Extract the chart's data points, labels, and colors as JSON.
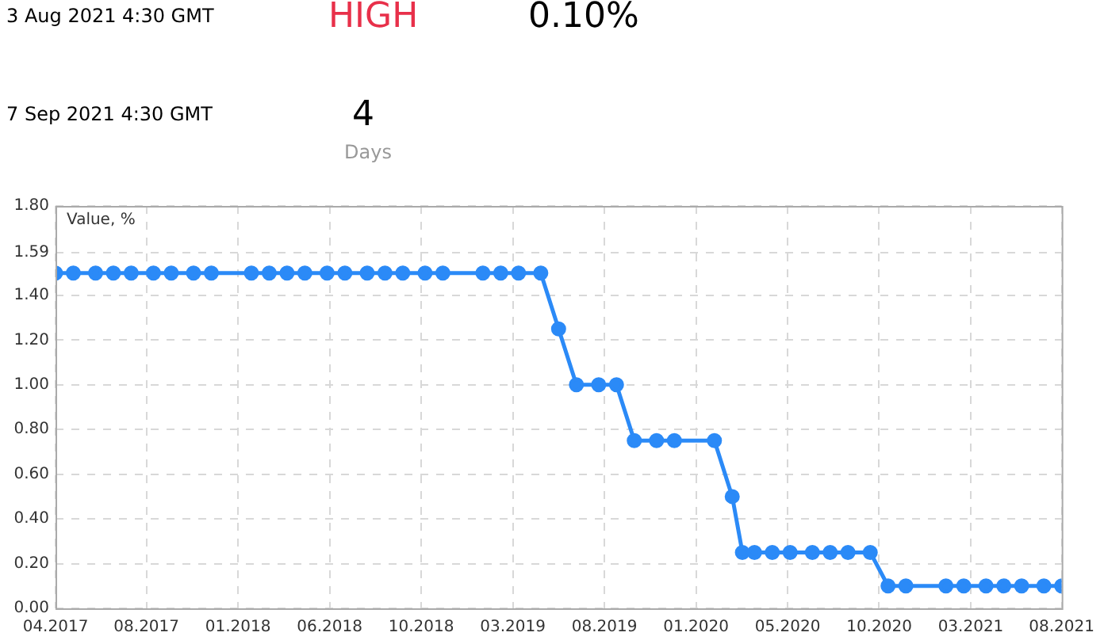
{
  "chart_data": [
    {
      "type": "other",
      "annotations": [
        "3 Aug 2021 4:30 GMT",
        "HIGH",
        "0.10%",
        "7 Sep 2021 4:30 GMT",
        "4",
        "Days"
      ]
    },
    {
      "type": "line",
      "ylabel": "Value, %",
      "color": "#2b8af7",
      "marker": "circle",
      "line_style": "solid",
      "grid": true,
      "legend": false,
      "xlim": [
        "2017-04-04",
        "2021-08-03"
      ],
      "xticks": [
        {
          "value": "2017-04-04",
          "label": "04.2017"
        },
        {
          "value": "2017-08-25",
          "label": "08.2017"
        },
        {
          "value": "2018-01-16",
          "label": "01.2018"
        },
        {
          "value": "2018-06-09",
          "label": "06.2018"
        },
        {
          "value": "2018-10-31",
          "label": "10.2018"
        },
        {
          "value": "2019-03-24",
          "label": "03.2019"
        },
        {
          "value": "2019-08-15",
          "label": "08.2019"
        },
        {
          "value": "2020-01-06",
          "label": "01.2020"
        },
        {
          "value": "2020-05-29",
          "label": "05.2020"
        },
        {
          "value": "2020-10-20",
          "label": "10.2020"
        },
        {
          "value": "2021-03-13",
          "label": "03.2021"
        },
        {
          "value": "2021-08-03",
          "label": "08.2021"
        }
      ],
      "ylim": [
        0,
        1.8
      ],
      "yticks": [
        {
          "value": 0,
          "label": "0.00"
        },
        {
          "value": 0.2,
          "label": "0.20"
        },
        {
          "value": 0.4,
          "label": "0.40"
        },
        {
          "value": 0.6,
          "label": "0.60"
        },
        {
          "value": 0.8,
          "label": "0.80"
        },
        {
          "value": 1,
          "label": "1.00"
        },
        {
          "value": 1.2,
          "label": "1.20"
        },
        {
          "value": 1.4,
          "label": "1.40"
        },
        1.59,
        {
          "value": 1.8,
          "label": "1.80"
        }
      ],
      "x": [
        "2017-04-04",
        "2017-05-02",
        "2017-06-06",
        "2017-07-04",
        "2017-08-01",
        "2017-09-05",
        "2017-10-03",
        "2017-11-07",
        "2017-12-05",
        "2018-02-06",
        "2018-03-06",
        "2018-04-03",
        "2018-05-01",
        "2018-06-05",
        "2018-07-03",
        "2018-08-07",
        "2018-09-04",
        "2018-10-02",
        "2018-11-06",
        "2018-12-04",
        "2019-02-05",
        "2019-03-05",
        "2019-04-02",
        "2019-05-07",
        "2019-06-04",
        "2019-07-02",
        "2019-08-06",
        "2019-09-03",
        "2019-10-01",
        "2019-11-05",
        "2019-12-03",
        "2020-02-04",
        "2020-03-03",
        "2020-03-19",
        "2020-04-07",
        "2020-05-05",
        "2020-06-02",
        "2020-07-07",
        "2020-08-04",
        "2020-09-01",
        "2020-10-06",
        "2020-11-03",
        "2020-12-01",
        "2021-02-02",
        "2021-03-02",
        "2021-04-06",
        "2021-05-04",
        "2021-06-01",
        "2021-07-06",
        "2021-08-03"
      ],
      "values": [
        1.5,
        1.5,
        1.5,
        1.5,
        1.5,
        1.5,
        1.5,
        1.5,
        1.5,
        1.5,
        1.5,
        1.5,
        1.5,
        1.5,
        1.5,
        1.5,
        1.5,
        1.5,
        1.5,
        1.5,
        1.5,
        1.5,
        1.5,
        1.5,
        1.25,
        1,
        1,
        1,
        0.75,
        0.75,
        0.75,
        0.75,
        0.5,
        0.25,
        0.25,
        0.25,
        0.25,
        0.25,
        0.25,
        0.25,
        0.25,
        0.1,
        0.1,
        0.1,
        0.1,
        0.1,
        0.1,
        0.1,
        0.1,
        0.1
      ]
    }
  ]
}
